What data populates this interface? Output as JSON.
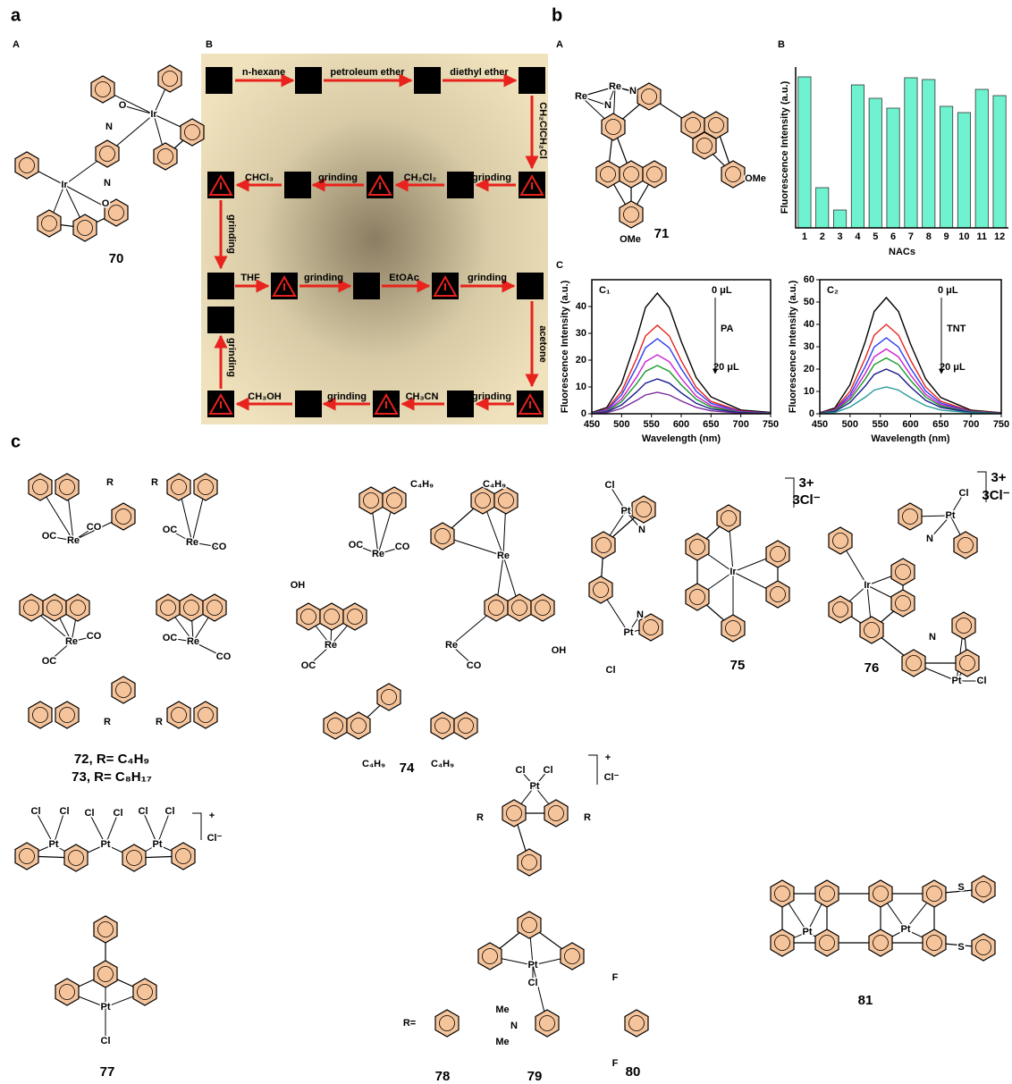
{
  "figure_labels": [
    "a",
    "b",
    "c"
  ],
  "sub_labels": [
    "A",
    "B",
    "A",
    "B",
    "C"
  ],
  "flow": {
    "steps": [
      "n-hexane",
      "petroleum ether",
      "diethyl ether",
      "CH₂ClCH₂Cl",
      "grinding",
      "CH₂Cl₂",
      "grinding",
      "CHCl₃",
      "grinding",
      "THF",
      "grinding",
      "EtOAc",
      "grinding",
      "acetone",
      "grinding",
      "CH₃CN",
      "grinding",
      "CH₃OH",
      "grinding"
    ]
  },
  "structures": [
    {
      "texts": [
        "Ir",
        "Ir",
        "O",
        "O",
        "N",
        "N",
        "70"
      ]
    },
    {
      "texts": [
        "Re",
        "Re",
        "N",
        "N",
        "OMe",
        "OMe",
        "71"
      ]
    },
    {
      "texts": [
        "Re",
        "Re",
        "Re",
        "Re",
        "R",
        "R",
        "R",
        "R",
        "OC",
        "CO",
        "OC",
        "CO",
        "OC",
        "CO",
        "OC",
        "CO",
        "72, R= C₄H₉",
        "73, R= C₈H₁₇"
      ]
    },
    {
      "texts": [
        "Re",
        "Re",
        "Re",
        "Re",
        "C₄H₉",
        "C₄H₉",
        "C₄H₉",
        "C₄H₉",
        "OH",
        "OH",
        "OC",
        "CO",
        "OC",
        "CO",
        "74"
      ]
    },
    {
      "texts": [
        "Pt",
        "Pt",
        "Ir",
        "Cl",
        "Cl",
        "N",
        "N",
        "3+",
        "3Cl⁻",
        "75"
      ]
    },
    {
      "texts": [
        "Pt",
        "Pt",
        "Ir",
        "Cl",
        "Cl",
        "N",
        "N",
        "3+",
        "3Cl⁻",
        "76"
      ]
    },
    {
      "texts": [
        "Pt",
        "Pt",
        "Pt",
        "Pt",
        "Cl",
        "Cl",
        "Cl",
        "Cl",
        "Cl",
        "Cl",
        "Cl",
        "+",
        "Cl⁻",
        "77"
      ]
    },
    {
      "texts": [
        "Pt",
        "Pt",
        "Cl",
        "Cl",
        "Cl",
        "R",
        "R",
        "+",
        "Cl⁻",
        "R=",
        "Me",
        "N",
        "Me",
        "F",
        "F",
        "78",
        "79",
        "80"
      ]
    },
    {
      "texts": [
        "Pt",
        "Pt",
        "S",
        "S",
        "81"
      ]
    }
  ],
  "chart_data": [
    {
      "type": "bar",
      "ylabel": "Fluorescence Intensity (a.u.)",
      "xlabel": "NACs",
      "categories": [
        "1",
        "2",
        "3",
        "4",
        "5",
        "6",
        "7",
        "8",
        "9",
        "10",
        "11",
        "12"
      ],
      "values": [
        169,
        45,
        20,
        160,
        145,
        134,
        168,
        166,
        136,
        129,
        155,
        148
      ],
      "ylim": [
        0,
        180
      ],
      "color": "#6ff2cf"
    },
    {
      "type": "line",
      "panel_label": "C₁",
      "xlabel": "Wavelength (nm)",
      "ylabel": "Fluorescence Intensity (a.u.)",
      "annotations": [
        "0 μL",
        "PA",
        "20 μL"
      ],
      "x": [
        450,
        475,
        500,
        525,
        540,
        560,
        580,
        600,
        625,
        650,
        700,
        750
      ],
      "xlim": [
        450,
        750
      ],
      "xticks": [
        450,
        500,
        550,
        600,
        650,
        700,
        750
      ],
      "ylim": [
        0,
        50
      ],
      "yticks": [
        0,
        10,
        20,
        30,
        40
      ],
      "series": [
        {
          "color": "#000000",
          "values": [
            0.5,
            2.3,
            11.3,
            27.9,
            39.6,
            45,
            39.6,
            27,
            13.5,
            6.3,
            1.4,
            0.5
          ]
        },
        {
          "color": "#e8221c",
          "values": [
            0.3,
            1.7,
            8.3,
            20.5,
            29,
            33,
            29,
            19.8,
            9.9,
            4.6,
            1,
            0.3
          ]
        },
        {
          "color": "#2a3df0",
          "values": [
            0.3,
            1.4,
            7,
            17.4,
            24.6,
            28,
            24.6,
            16.8,
            8.4,
            3.9,
            0.8,
            0.3
          ]
        },
        {
          "color": "#d020d0",
          "values": [
            0.2,
            1.1,
            5.5,
            13.6,
            19.4,
            22,
            19.4,
            13.2,
            6.6,
            3.1,
            0.7,
            0.2
          ]
        },
        {
          "color": "#1c9a2a",
          "values": [
            0.2,
            0.9,
            4.5,
            11.2,
            15.8,
            18,
            15.8,
            10.8,
            5.4,
            2.5,
            0.5,
            0.2
          ]
        },
        {
          "color": "#1a1a8c",
          "values": [
            0.1,
            0.7,
            3.3,
            8.1,
            11.4,
            13,
            11.4,
            7.8,
            3.9,
            1.8,
            0.4,
            0.1
          ]
        },
        {
          "color": "#7a2a9a",
          "values": [
            0.1,
            0.4,
            2,
            5,
            7,
            8,
            7,
            4.8,
            2.4,
            1.1,
            0.2,
            0.1
          ]
        }
      ]
    },
    {
      "type": "line",
      "panel_label": "C₂",
      "xlabel": "Wavelength (nm)",
      "ylabel": "Fluorescence Intensity (a.u.)",
      "annotations": [
        "0 μL",
        "TNT",
        "20 μL"
      ],
      "x": [
        450,
        475,
        500,
        525,
        540,
        560,
        580,
        600,
        625,
        650,
        700,
        750
      ],
      "xlim": [
        450,
        750
      ],
      "xticks": [
        450,
        500,
        550,
        600,
        650,
        700,
        750
      ],
      "ylim": [
        0,
        60
      ],
      "yticks": [
        0,
        10,
        20,
        30,
        40,
        50,
        60
      ],
      "series": [
        {
          "color": "#000000",
          "values": [
            0.5,
            2.6,
            13,
            32.2,
            45.8,
            52,
            45.8,
            31.2,
            15.6,
            7.3,
            1.6,
            0.5
          ]
        },
        {
          "color": "#e8221c",
          "values": [
            0.4,
            2,
            10,
            24.8,
            35.2,
            40,
            35.2,
            24,
            12,
            5.6,
            1.2,
            0.4
          ]
        },
        {
          "color": "#2a3df0",
          "values": [
            0.3,
            1.7,
            8.5,
            21.1,
            29.9,
            34,
            29.9,
            20.4,
            10.2,
            4.8,
            1,
            0.3
          ]
        },
        {
          "color": "#d020d0",
          "values": [
            0.3,
            1.5,
            7.3,
            18,
            25.5,
            29,
            25.5,
            17.4,
            8.7,
            4.1,
            0.9,
            0.3
          ]
        },
        {
          "color": "#1c9a2a",
          "values": [
            0.3,
            1.3,
            6.3,
            15.5,
            22,
            25,
            22,
            15,
            7.5,
            3.5,
            0.8,
            0.3
          ]
        },
        {
          "color": "#1a1a8c",
          "values": [
            0.2,
            1,
            5,
            12.4,
            17.6,
            20,
            17.6,
            12,
            6,
            2.8,
            0.6,
            0.2
          ]
        },
        {
          "color": "#2a9a9a",
          "values": [
            0.1,
            0.6,
            3,
            7.4,
            10.6,
            12,
            10.6,
            7.2,
            3.6,
            1.7,
            0.4,
            0.1
          ]
        }
      ]
    }
  ]
}
